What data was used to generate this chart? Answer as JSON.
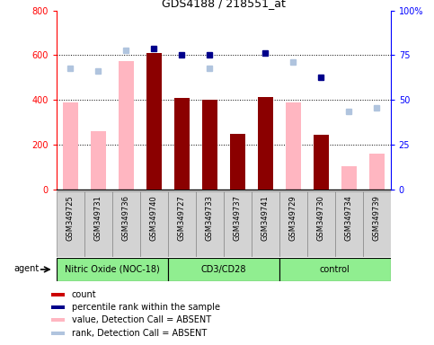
{
  "title": "GDS4188 / 218551_at",
  "samples": [
    "GSM349725",
    "GSM349731",
    "GSM349736",
    "GSM349740",
    "GSM349727",
    "GSM349733",
    "GSM349737",
    "GSM349741",
    "GSM349729",
    "GSM349730",
    "GSM349734",
    "GSM349739"
  ],
  "group_ranges": [
    [
      0,
      3
    ],
    [
      4,
      7
    ],
    [
      8,
      11
    ]
  ],
  "group_labels": [
    "Nitric Oxide (NOC-18)",
    "CD3/CD28",
    "control"
  ],
  "group_color": "#90EE90",
  "absent_value_bars": [
    390,
    260,
    575,
    0,
    410,
    400,
    250,
    415,
    390,
    0,
    105,
    160
  ],
  "count_bars": [
    0,
    0,
    0,
    610,
    410,
    400,
    250,
    415,
    0,
    245,
    0,
    0
  ],
  "absent_rank_dots_left": [
    540,
    530,
    620,
    0,
    0,
    540,
    0,
    0,
    570,
    0,
    350,
    365
  ],
  "present_rank_dots_left": [
    0,
    0,
    0,
    630,
    600,
    600,
    0,
    610,
    0,
    500,
    0,
    0
  ],
  "ylim_left": [
    0,
    800
  ],
  "ylim_right": [
    0,
    100
  ],
  "left_yticks": [
    0,
    200,
    400,
    600,
    800
  ],
  "right_yticks": [
    0,
    25,
    50,
    75,
    100
  ],
  "right_ytick_labels": [
    "0",
    "25",
    "50",
    "75",
    "100%"
  ],
  "bar_width": 0.55,
  "count_color": "#8B0000",
  "absent_value_color": "#FFB6C1",
  "absent_rank_color": "#B0C4DE",
  "present_rank_color": "#00008B",
  "sample_bg": "#D3D3D3",
  "legend_items": [
    {
      "color": "#CC0000",
      "label": "count"
    },
    {
      "color": "#00008B",
      "label": "percentile rank within the sample"
    },
    {
      "color": "#FFB6C1",
      "label": "value, Detection Call = ABSENT"
    },
    {
      "color": "#B0C4DE",
      "label": "rank, Detection Call = ABSENT"
    }
  ]
}
